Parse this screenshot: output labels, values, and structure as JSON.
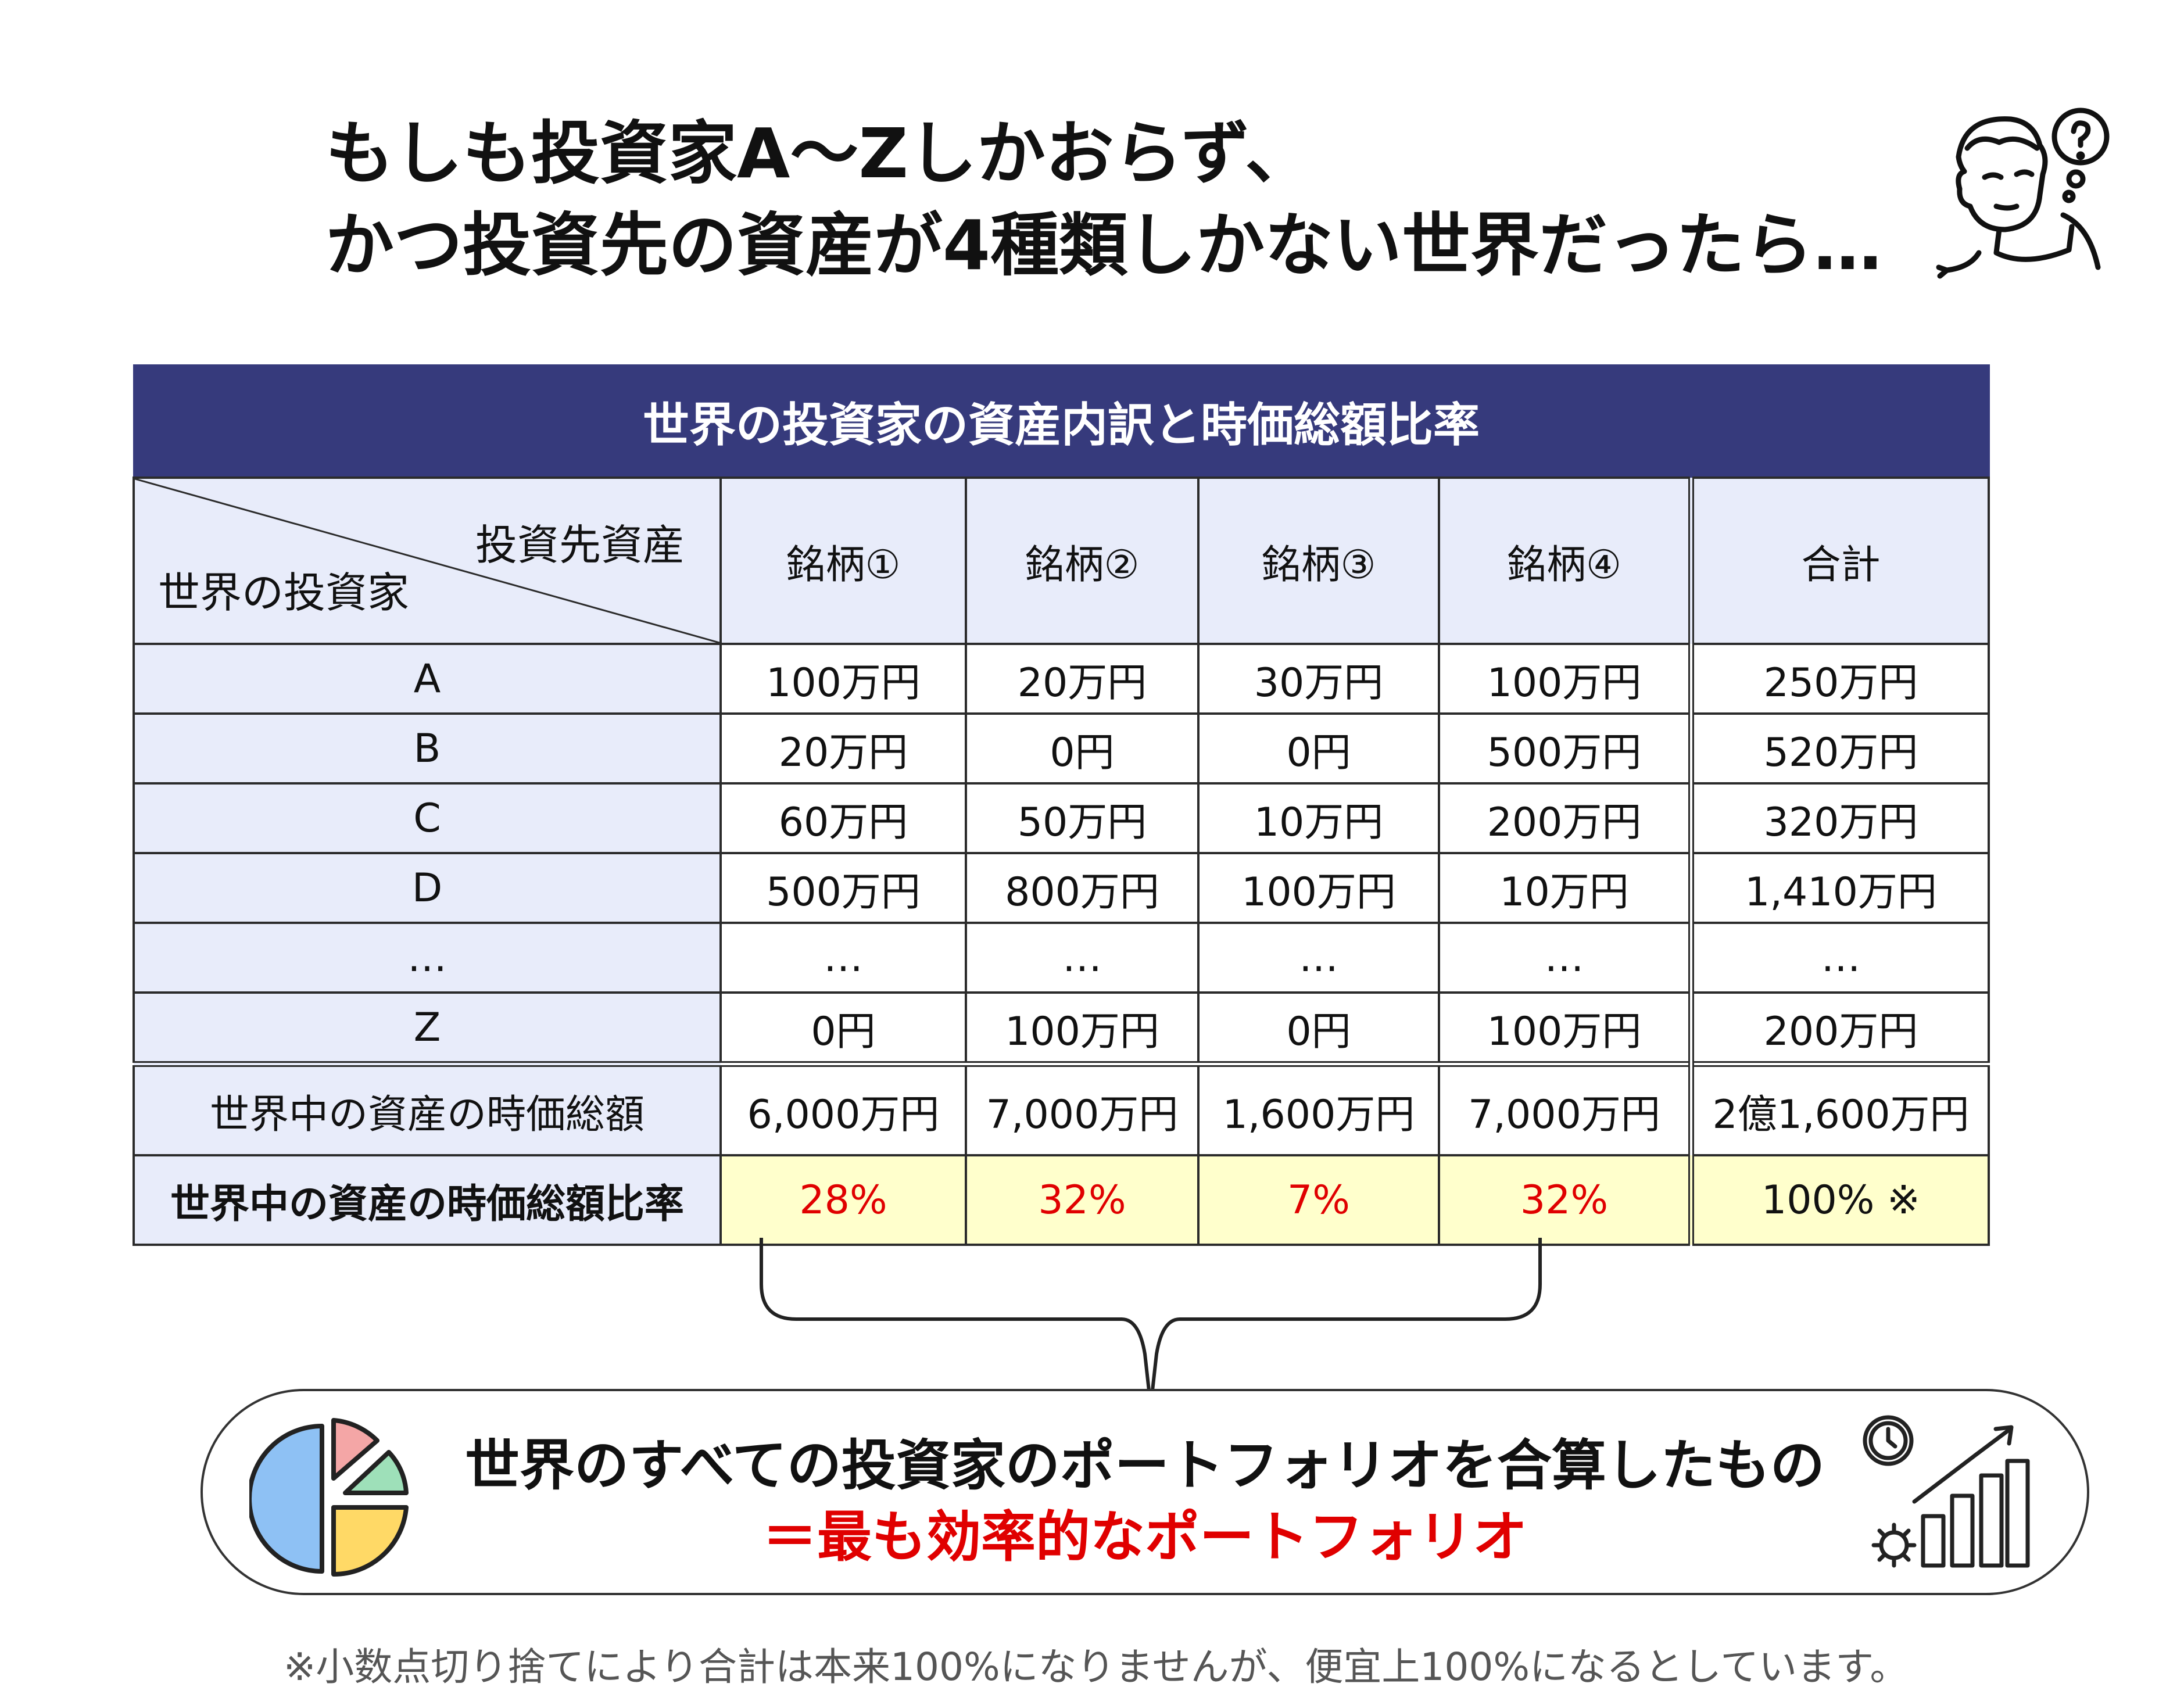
{
  "headline": {
    "line1": "もしも投資家A〜Zしかおらず、",
    "line2": "かつ投資先の資産が4種類しかない世界だったら…"
  },
  "table": {
    "title": "世界の投資家の資産内訳と時価総額比率",
    "corner_top": "投資先資産",
    "corner_bottom": "世界の投資家",
    "columns": [
      "銘柄①",
      "銘柄②",
      "銘柄③",
      "銘柄④",
      "合計"
    ],
    "rows": [
      {
        "label": "A",
        "values": [
          "100万円",
          "20万円",
          "30万円",
          "100万円",
          "250万円"
        ]
      },
      {
        "label": "B",
        "values": [
          "20万円",
          "0円",
          "0円",
          "500万円",
          "520万円"
        ]
      },
      {
        "label": "C",
        "values": [
          "60万円",
          "50万円",
          "10万円",
          "200万円",
          "320万円"
        ]
      },
      {
        "label": "D",
        "values": [
          "500万円",
          "800万円",
          "100万円",
          "10万円",
          "1,410万円"
        ]
      },
      {
        "label": "…",
        "values": [
          "…",
          "…",
          "…",
          "…",
          "…"
        ]
      },
      {
        "label": "Z",
        "values": [
          "0円",
          "100万円",
          "0円",
          "100万円",
          "200万円"
        ]
      }
    ],
    "market_cap": {
      "label": "世界中の資産の時価総額",
      "values": [
        "6,000万円",
        "7,000万円",
        "1,600万円",
        "7,000万円",
        "2億1,600万円"
      ]
    },
    "ratio": {
      "label": "世界中の資産の時価総額比率",
      "values": [
        "28%",
        "32%",
        "7%",
        "32%",
        "100% ※"
      ]
    }
  },
  "callout": {
    "line1": "世界のすべての投資家のポートフォリオを合算したもの",
    "line2": "＝最も効率的なポートフォリオ"
  },
  "footnote": "※小数点切り捨てにより合計は本来100%になりませんが、便宜上100%になるとしています。",
  "icons": {
    "thinker": "thinking-person-icon",
    "pie": "pie-chart-icon",
    "growth": "growth-chart-gear-icon"
  },
  "colors": {
    "header_navy": "#363A7C",
    "header_cell": "#E8ECFA",
    "ratio_yellow": "#FFFFCC",
    "accent_red": "#E00000"
  }
}
